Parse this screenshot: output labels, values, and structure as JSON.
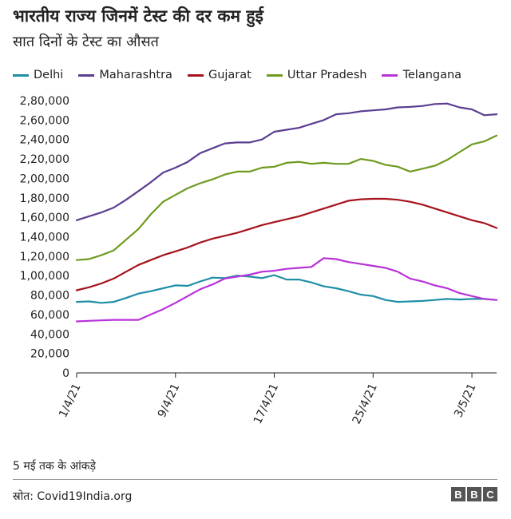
{
  "title": "भारतीय राज्य जिनमें टेस्ट की दर कम हुई",
  "subtitle": "सात दिनों के टेस्ट का औसत",
  "footnote": "5 मई तक के आंकड़े",
  "source": "स्रोत: Covid19India.org",
  "logo": [
    "B",
    "B",
    "C"
  ],
  "chart_data": {
    "type": "line",
    "x": [
      "1/4/21",
      "2/4/21",
      "3/4/21",
      "4/4/21",
      "5/4/21",
      "6/4/21",
      "7/4/21",
      "8/4/21",
      "9/4/21",
      "10/4/21",
      "11/4/21",
      "12/4/21",
      "13/4/21",
      "14/4/21",
      "15/4/21",
      "16/4/21",
      "17/4/21",
      "18/4/21",
      "19/4/21",
      "20/4/21",
      "21/4/21",
      "22/4/21",
      "23/4/21",
      "24/4/21",
      "25/4/21",
      "26/4/21",
      "27/4/21",
      "28/4/21",
      "29/4/21",
      "30/4/21",
      "1/5/21",
      "2/5/21",
      "3/5/21",
      "4/5/21",
      "5/5/21"
    ],
    "x_tick_labels": [
      "1/4/21",
      "9/4/21",
      "17/4/21",
      "25/4/21",
      "3/5/21"
    ],
    "x_tick_dates": [
      "1/4/21",
      "9/4/21",
      "17/4/21",
      "25/4/21",
      "3/5/21"
    ],
    "ylim": [
      0,
      280000
    ],
    "y_ticks": [
      0,
      20000,
      40000,
      60000,
      80000,
      100000,
      120000,
      140000,
      160000,
      180000,
      200000,
      220000,
      240000,
      260000,
      280000
    ],
    "y_tick_labels": [
      "0",
      "20,000",
      "40,000",
      "60,000",
      "80,000",
      "1,00,000",
      "1,20,000",
      "1,40,000",
      "1,60,000",
      "1,80,000",
      "2,00,000",
      "2,20,000",
      "2,40,000",
      "2,60,000",
      "2,80,000"
    ],
    "grid": false,
    "legend_position": "top",
    "series": [
      {
        "name": "Delhi",
        "color": "#1f8fa6",
        "values": [
          73000,
          73500,
          72000,
          73000,
          77000,
          81500,
          84000,
          87000,
          90000,
          89500,
          94000,
          98000,
          97500,
          100000,
          99000,
          97500,
          100500,
          96000,
          96000,
          93000,
          89000,
          87000,
          84000,
          80500,
          79000,
          75000,
          73000,
          73500,
          74000,
          75000,
          76000,
          75500,
          76000,
          76000,
          75000
        ]
      },
      {
        "name": "Maharashtra",
        "color": "#5b3d91",
        "values": [
          157000,
          161000,
          165000,
          170000,
          178000,
          187000,
          196000,
          206000,
          211000,
          217000,
          226000,
          231000,
          236000,
          237000,
          237000,
          240000,
          248000,
          250000,
          252000,
          256000,
          260000,
          266000,
          267000,
          269000,
          270000,
          271000,
          273000,
          273500,
          274500,
          276500,
          277000,
          273000,
          271000,
          265000,
          266000
        ]
      },
      {
        "name": "Gujarat",
        "color": "#a6121b",
        "values": [
          85000,
          88000,
          92000,
          97000,
          104000,
          111000,
          116000,
          121000,
          125000,
          129000,
          134000,
          138000,
          141000,
          144000,
          148000,
          152000,
          155000,
          158000,
          161000,
          165000,
          169000,
          173000,
          177000,
          178500,
          179000,
          179000,
          178000,
          176000,
          173000,
          169000,
          165000,
          161000,
          157000,
          154000,
          149000
        ]
      },
      {
        "name": "Uttar Pradesh",
        "color": "#6e9a1f",
        "values": [
          116000,
          117000,
          121000,
          126000,
          137000,
          148000,
          163000,
          176000,
          183000,
          190000,
          195000,
          199000,
          204000,
          207000,
          207000,
          211000,
          212000,
          216000,
          217000,
          215000,
          216000,
          215000,
          215000,
          220000,
          218000,
          214000,
          212000,
          207000,
          210000,
          213000,
          219000,
          227000,
          235000,
          238000,
          244000
        ]
      },
      {
        "name": "Telangana",
        "color": "#b832d9",
        "values": [
          53000,
          53500,
          54000,
          54500,
          54500,
          54500,
          60000,
          65500,
          72000,
          79000,
          86000,
          91000,
          97000,
          99000,
          101000,
          104000,
          105000,
          107000,
          108000,
          109000,
          118000,
          117000,
          114000,
          112000,
          110000,
          108000,
          104000,
          97000,
          94000,
          90000,
          87000,
          82000,
          79000,
          76000,
          75000
        ]
      }
    ]
  }
}
